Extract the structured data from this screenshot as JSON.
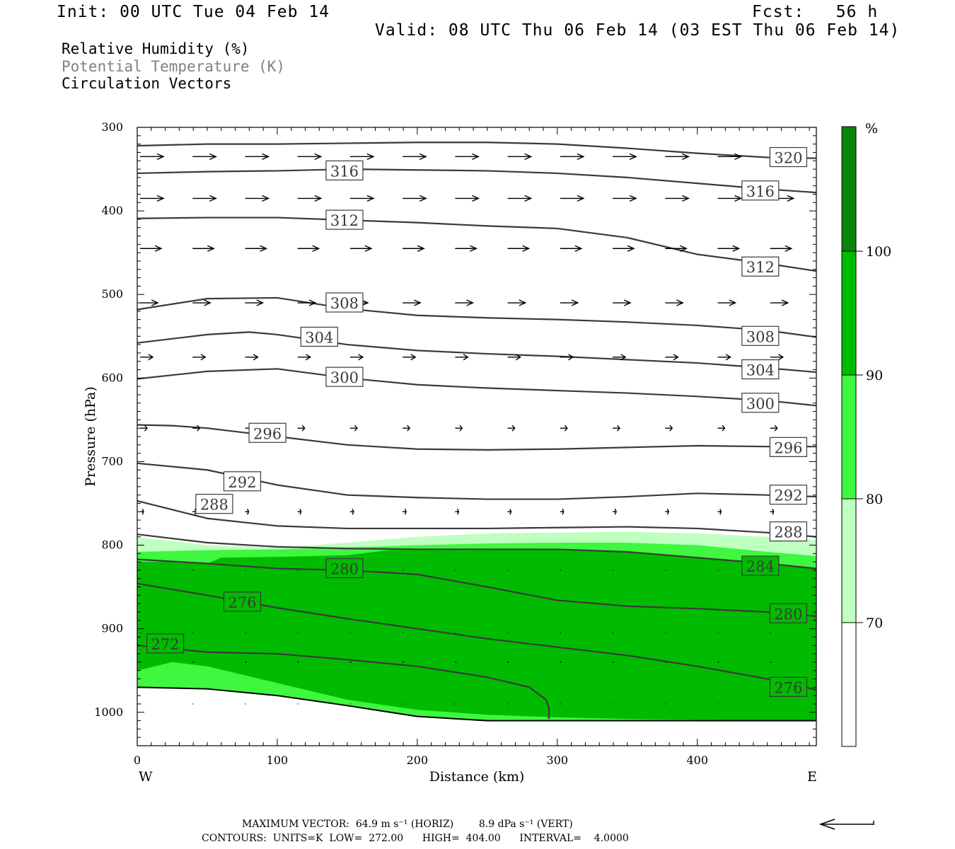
{
  "header": {
    "init": "Init: 00 UTC Tue 04 Feb 14",
    "fcst": "Fcst:   56 h",
    "valid": "Valid: 08 UTC Thu 06 Feb 14 (03 EST Thu 06 Feb 14)"
  },
  "legend": {
    "rh": "Relative Humidity (%)",
    "theta": "Potential Temperature (K)",
    "vectors": "Circulation Vectors"
  },
  "colors": {
    "rh_70": "#bfffbf",
    "rh_80": "#3ff73f",
    "rh_90": "#00bb00",
    "rh_100": "#0b850b",
    "contour": "#3a3a3a",
    "theta_legend": "#808080"
  },
  "colorbar": {
    "unit": "%",
    "levels": [
      "100",
      "90",
      "80",
      "70"
    ]
  },
  "footer": {
    "line1": "MAXIMUM VECTOR:  64.9 m s⁻¹ (HORIZ)        8.9 dPa s⁻¹ (VERT)",
    "line2": "CONTOURS:  UNITS=K  LOW=  272.00      HIGH=  404.00      INTERVAL=    4.0000"
  },
  "chart_data": {
    "type": "cross-section",
    "xlabel": "Distance (km)",
    "ylabel": "Pressure (hPa)",
    "x_ticks": [
      0,
      100,
      200,
      300,
      400
    ],
    "y_ticks": [
      300,
      400,
      500,
      600,
      700,
      800,
      900,
      1000
    ],
    "xlim": [
      0,
      485
    ],
    "ylim": [
      1040,
      300
    ],
    "x_left_label": "W",
    "x_right_label": "E",
    "theta_contours": [
      {
        "value": 272,
        "x": [
          0,
          50,
          100,
          150,
          200,
          250,
          280,
          292,
          294,
          294
        ],
        "p": [
          920,
          928,
          930,
          937,
          945,
          958,
          970,
          985,
          995,
          1008
        ],
        "labels": [
          [
            20,
            918
          ]
        ]
      },
      {
        "value": 276,
        "x": [
          0,
          50,
          100,
          150,
          200,
          250,
          300,
          350,
          400,
          450,
          485
        ],
        "p": [
          846,
          860,
          875,
          888,
          900,
          912,
          922,
          932,
          945,
          960,
          973
        ],
        "labels": [
          [
            75,
            868
          ],
          [
            465,
            970
          ]
        ]
      },
      {
        "value": 280,
        "x": [
          0,
          50,
          100,
          150,
          200,
          250,
          300,
          350,
          400,
          450,
          485
        ],
        "p": [
          817,
          822,
          828,
          830,
          835,
          850,
          866,
          873,
          876,
          880,
          885
        ],
        "labels": [
          [
            148,
            828
          ],
          [
            465,
            882
          ]
        ]
      },
      {
        "value": 284,
        "x": [
          0,
          50,
          100,
          150,
          200,
          250,
          300,
          350,
          400,
          450,
          485
        ],
        "p": [
          787,
          797,
          802,
          804,
          805,
          805,
          805,
          808,
          815,
          822,
          828
        ],
        "labels": [
          [
            445,
            825
          ]
        ]
      },
      {
        "value": 288,
        "x": [
          0,
          50,
          100,
          150,
          200,
          250,
          300,
          350,
          400,
          450,
          485
        ],
        "p": [
          747,
          768,
          777,
          780,
          780,
          780,
          779,
          778,
          780,
          785,
          790
        ],
        "labels": [
          [
            55,
            751
          ],
          [
            465,
            784
          ]
        ]
      },
      {
        "value": 292,
        "x": [
          0,
          50,
          100,
          150,
          200,
          250,
          300,
          350,
          400,
          450,
          485
        ],
        "p": [
          702,
          710,
          728,
          740,
          743,
          745,
          745,
          742,
          738,
          740,
          742
        ],
        "labels": [
          [
            75,
            724
          ],
          [
            465,
            740
          ]
        ]
      },
      {
        "value": 296,
        "x": [
          0,
          25,
          50,
          100,
          150,
          200,
          250,
          300,
          350,
          400,
          450,
          485
        ],
        "p": [
          656,
          657,
          660,
          670,
          680,
          685,
          686,
          685,
          683,
          681,
          682,
          682
        ],
        "labels": [
          [
            93,
            666
          ],
          [
            465,
            683
          ]
        ]
      },
      {
        "value": 300,
        "x": [
          0,
          50,
          100,
          150,
          200,
          250,
          300,
          350,
          400,
          450,
          485
        ],
        "p": [
          601,
          592,
          589,
          600,
          608,
          612,
          615,
          618,
          622,
          627,
          633
        ],
        "labels": [
          [
            148,
            599
          ],
          [
            445,
            630
          ]
        ]
      },
      {
        "value": 304,
        "x": [
          0,
          50,
          80,
          100,
          150,
          200,
          250,
          300,
          350,
          400,
          450,
          485
        ],
        "p": [
          558,
          548,
          545,
          548,
          560,
          567,
          571,
          574,
          578,
          582,
          588,
          593
        ],
        "labels": [
          [
            130,
            551
          ],
          [
            445,
            590
          ]
        ]
      },
      {
        "value": 308,
        "x": [
          0,
          50,
          100,
          150,
          200,
          250,
          300,
          350,
          400,
          450,
          485
        ],
        "p": [
          518,
          505,
          504,
          517,
          525,
          528,
          530,
          533,
          537,
          543,
          551
        ],
        "labels": [
          [
            148,
            510
          ],
          [
            445,
            550
          ]
        ]
      },
      {
        "value": 312,
        "x": [
          0,
          50,
          100,
          150,
          200,
          250,
          300,
          350,
          400,
          450,
          485
        ],
        "p": [
          409,
          408,
          408,
          411,
          414,
          418,
          421,
          432,
          452,
          463,
          472
        ],
        "labels": [
          [
            148,
            411
          ],
          [
            445,
            467
          ]
        ]
      },
      {
        "value": 316,
        "x": [
          0,
          50,
          100,
          150,
          200,
          250,
          300,
          350,
          400,
          450,
          485
        ],
        "p": [
          355,
          353,
          352,
          350,
          351,
          352,
          355,
          360,
          367,
          374,
          378
        ],
        "labels": [
          [
            148,
            352
          ],
          [
            445,
            376
          ]
        ]
      },
      {
        "value": 320,
        "x": [
          0,
          50,
          100,
          150,
          200,
          250,
          300,
          350,
          400,
          450,
          485
        ],
        "p": [
          322,
          320,
          320,
          319,
          318,
          318,
          320,
          325,
          331,
          336,
          337
        ],
        "labels": [
          [
            465,
            336
          ]
        ]
      }
    ],
    "rh_fill": {
      "surface": {
        "x": [
          0,
          50,
          100,
          150,
          200,
          250,
          300,
          350,
          400,
          450,
          485
        ],
        "p": [
          970,
          972,
          980,
          992,
          1005,
          1010,
          1010,
          1010,
          1010,
          1010,
          1010
        ]
      },
      "rh70_top": {
        "x": [
          0,
          25,
          50,
          100,
          150,
          200,
          250,
          300,
          350,
          400,
          450,
          485
        ],
        "p": [
          791,
          795,
          800,
          803,
          797,
          790,
          786,
          785,
          784,
          786,
          790,
          794
        ]
      },
      "rh80_top": {
        "x": [
          0,
          50,
          100,
          150,
          200,
          250,
          300,
          350,
          400,
          450,
          485
        ],
        "p": [
          808,
          806,
          805,
          803,
          800,
          798,
          797,
          797,
          800,
          808,
          813
        ]
      },
      "rh90_top": {
        "x": [
          0,
          25,
          50,
          60,
          100,
          150,
          180,
          200,
          250,
          300,
          350,
          400,
          450,
          485
        ],
        "p": [
          820,
          820,
          822,
          815,
          814,
          812,
          806,
          806,
          806,
          805,
          808,
          815,
          822,
          828
        ]
      },
      "rh90_bottom": {
        "x": [
          0,
          25,
          50,
          100,
          150,
          200,
          250,
          300,
          350,
          400,
          450,
          485
        ],
        "p": [
          950,
          940,
          945,
          965,
          985,
          997,
          1003,
          1006,
          1008,
          1009,
          1010,
          1010
        ]
      },
      "rh80_bottom": {
        "x": [
          0,
          50,
          100,
          150,
          200,
          250,
          300,
          350,
          400,
          450,
          485
        ],
        "p": [
          968,
          970,
          980,
          995,
          1005,
          1010,
          1010,
          1010,
          1010,
          1010,
          1010
        ]
      }
    },
    "vectors": {
      "max_horiz": "64.9 m s-1",
      "max_vert": "8.9 dPa s-1",
      "rows": [
        {
          "p": 335,
          "dx": 33
        },
        {
          "p": 385,
          "dx": 33
        },
        {
          "p": 445,
          "dx": 30
        },
        {
          "p": 510,
          "dx": 25
        },
        {
          "p": 575,
          "dx": 18
        },
        {
          "p": 660,
          "dx": 10
        },
        {
          "p": 760,
          "dx": 5
        },
        {
          "p": 830,
          "dx": 1
        },
        {
          "p": 905,
          "dx": 1
        },
        {
          "p": 940,
          "dx": 2
        },
        {
          "p": 990,
          "dx": 1
        }
      ]
    }
  }
}
